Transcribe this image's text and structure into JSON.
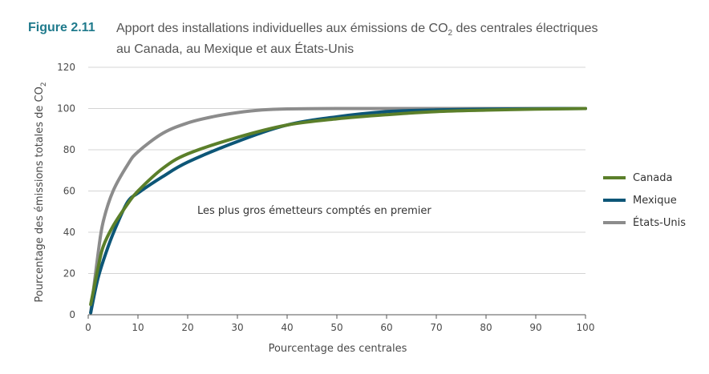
{
  "figure": {
    "label": "Figure 2.11",
    "title_line1_before_sub": "Apport des installations individuelles aux émissions de CO",
    "title_sub": "2",
    "title_line1_after_sub": " des centrales électriques",
    "title_line2": "au Canada, au Mexique et aux États-Unis"
  },
  "chart_data": {
    "type": "line",
    "xlabel": "Pourcentage des centrales",
    "ylabel_before_sub": "Pourcentage des émissions totales de CO",
    "ylabel_sub": "2",
    "xlim": [
      0,
      100
    ],
    "ylim": [
      0,
      120
    ],
    "x_ticks": [
      0,
      10,
      20,
      30,
      40,
      50,
      60,
      70,
      80,
      90,
      100
    ],
    "y_ticks": [
      0,
      20,
      40,
      60,
      80,
      100,
      120
    ],
    "grid": "horizontal",
    "legend_position": "right",
    "annotation": "Les plus gros émetteurs comptés en premier",
    "series": [
      {
        "name": "Canada",
        "color": "#5b7f2a",
        "x": [
          0.5,
          2,
          3,
          5,
          8,
          10,
          15,
          20,
          30,
          40,
          50,
          60,
          70,
          80,
          90,
          100
        ],
        "y": [
          5,
          23,
          33,
          43,
          54,
          60,
          71,
          78,
          86,
          92,
          95,
          97,
          98.5,
          99.2,
          99.7,
          100
        ]
      },
      {
        "name": "Mexique",
        "color": "#0d5677",
        "x": [
          0.5,
          2,
          4,
          6,
          8,
          10,
          15,
          20,
          30,
          40,
          50,
          60,
          70,
          80,
          90,
          100
        ],
        "y": [
          1,
          18,
          33,
          45,
          55,
          59,
          67,
          74,
          84,
          92,
          96,
          98.5,
          99.3,
          99.7,
          99.9,
          100
        ]
      },
      {
        "name": "États-Unis",
        "color": "#8c8c8c",
        "x": [
          0.5,
          2,
          3,
          5,
          8,
          10,
          15,
          20,
          25,
          30,
          35,
          40,
          50,
          60,
          80,
          100
        ],
        "y": [
          1,
          30,
          45,
          60,
          73,
          79,
          88,
          93,
          96,
          98,
          99.3,
          99.8,
          100,
          100,
          100,
          100
        ]
      }
    ]
  }
}
